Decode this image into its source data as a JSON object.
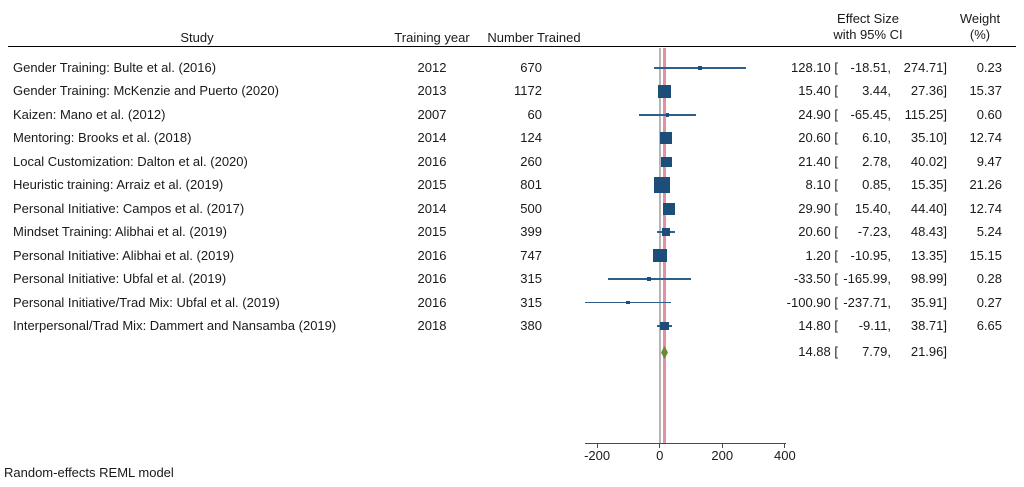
{
  "chart_data": {
    "type": "forest",
    "model_note": "Random-effects REML model",
    "columns": {
      "study": "Study",
      "year": "Training year",
      "n": "Number Trained",
      "es_line1": "Effect Size",
      "es_line2": "with 95% CI",
      "weight_line1": "Weight",
      "weight_line2": "(%)"
    },
    "rows": [
      {
        "study": "Gender Training: Bulte et al. (2016)",
        "year": "2012",
        "n": "670",
        "es": "128.10",
        "lo": "-18.51",
        "hi": "274.71",
        "weight": "0.23"
      },
      {
        "study": "Gender Training: McKenzie and Puerto (2020)",
        "year": "2013",
        "n": "1172",
        "es": "15.40",
        "lo": "3.44",
        "hi": "27.36",
        "weight": "15.37"
      },
      {
        "study": "Kaizen: Mano et al. (2012)",
        "year": "2007",
        "n": "60",
        "es": "24.90",
        "lo": "-65.45",
        "hi": "115.25",
        "weight": "0.60"
      },
      {
        "study": "Mentoring: Brooks et al. (2018)",
        "year": "2014",
        "n": "124",
        "es": "20.60",
        "lo": "6.10",
        "hi": "35.10",
        "weight": "12.74"
      },
      {
        "study": "Local Customization: Dalton et al. (2020)",
        "year": "2016",
        "n": "260",
        "es": "21.40",
        "lo": "2.78",
        "hi": "40.02",
        "weight": "9.47"
      },
      {
        "study": "Heuristic training: Arraiz et al. (2019)",
        "year": "2015",
        "n": "801",
        "es": "8.10",
        "lo": "0.85",
        "hi": "15.35",
        "weight": "21.26"
      },
      {
        "study": "Personal Initiative: Campos et al. (2017)",
        "year": "2014",
        "n": "500",
        "es": "29.90",
        "lo": "15.40",
        "hi": "44.40",
        "weight": "12.74"
      },
      {
        "study": "Mindset Training: Alibhai et al. (2019)",
        "year": "2015",
        "n": "399",
        "es": "20.60",
        "lo": "-7.23",
        "hi": "48.43",
        "weight": "5.24"
      },
      {
        "study": "Personal Initiative: Alibhai et al. (2019)",
        "year": "2016",
        "n": "747",
        "es": "1.20",
        "lo": "-10.95",
        "hi": "13.35",
        "weight": "15.15"
      },
      {
        "study": "Personal Initiative: Ubfal et al. (2019)",
        "year": "2016",
        "n": "315",
        "es": "-33.50",
        "lo": "-165.99",
        "hi": "98.99",
        "weight": "0.28"
      },
      {
        "study": "Personal Initiative/Trad Mix: Ubfal et al. (2019)",
        "year": "2016",
        "n": "315",
        "es": "-100.90",
        "lo": "-237.71",
        "hi": "35.91",
        "weight": "0.27"
      },
      {
        "study": "Interpersonal/Trad Mix: Dammert and Nansamba (2019)",
        "year": "2018",
        "n": "380",
        "es": "14.80",
        "lo": "-9.11",
        "hi": "38.71",
        "weight": "6.65"
      }
    ],
    "overall": {
      "es": "14.88",
      "lo": "7.79",
      "hi": "21.96"
    },
    "x_axis": {
      "ticks": [
        "-200",
        "0",
        "200",
        "400"
      ],
      "min": -238,
      "max": 400,
      "zero_ref": 0
    },
    "colors": {
      "square": "#1d4e79",
      "whisker": "#2e5e8c",
      "zero_refline": "#b5b5b5",
      "overall_refline": "#e58fa3",
      "diamond": "#6b8a35",
      "axis": "#4a4a4a",
      "text": "#1a1a1a"
    }
  }
}
